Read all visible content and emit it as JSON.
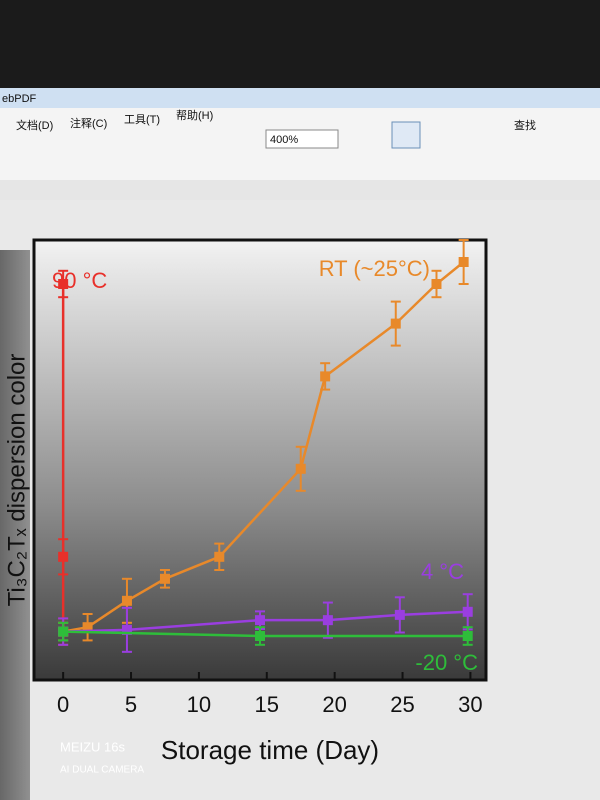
{
  "ui": {
    "app_title": "ebPDF",
    "menus": [
      "文档(D)",
      "注释(C)",
      "工具(T)",
      "帮助(H)"
    ],
    "zoom": "400%",
    "search": "查找",
    "watermark": [
      "MEIZU 16s",
      "AI DUAL CAMERA"
    ]
  },
  "chart_data": {
    "type": "line",
    "x_label": "Storage time (Day)",
    "y_label": "Ti₃C₂Tₓ dispersion color",
    "xlim": [
      -2,
      31
    ],
    "xticks": [
      0,
      5,
      10,
      15,
      20,
      25,
      30
    ],
    "ylim": [
      0,
      1
    ],
    "series": [
      {
        "name": "90 °C",
        "color": "#e8302a",
        "x": [
          0,
          0,
          0
        ],
        "values": [
          0.9,
          0.28,
          0.11
        ],
        "errors": [
          0.03,
          0.04,
          0.03
        ]
      },
      {
        "name": "RT (~25°C)",
        "color": "#e8892a",
        "x": [
          0,
          1.8,
          4.7,
          7.5,
          11.5,
          17.5,
          19.3,
          24.5,
          27.5,
          29.5
        ],
        "values": [
          0.11,
          0.12,
          0.18,
          0.23,
          0.28,
          0.48,
          0.69,
          0.81,
          0.9,
          0.95
        ],
        "errors": [
          0.02,
          0.03,
          0.05,
          0.02,
          0.03,
          0.05,
          0.03,
          0.05,
          0.03,
          0.05
        ]
      },
      {
        "name": "4 °C",
        "color": "#9a3ee0",
        "x": [
          0,
          4.7,
          14.5,
          19.5,
          24.8,
          29.8
        ],
        "values": [
          0.11,
          0.114,
          0.136,
          0.136,
          0.148,
          0.155
        ],
        "errors": [
          0.03,
          0.05,
          0.02,
          0.04,
          0.04,
          0.04
        ]
      },
      {
        "name": "-20 °C",
        "color": "#2ebd3a",
        "x": [
          0,
          14.5,
          29.8
        ],
        "values": [
          0.11,
          0.1,
          0.1
        ],
        "errors": [
          0.02,
          0.02,
          0.02
        ]
      }
    ]
  }
}
